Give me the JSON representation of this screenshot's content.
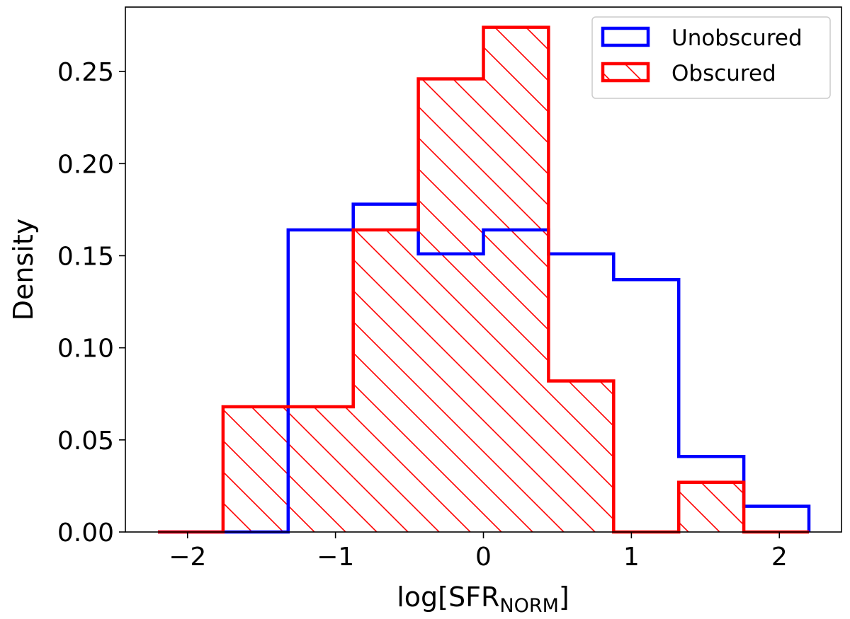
{
  "chart_data": {
    "type": "histogram",
    "title": "",
    "xlabel": {
      "main": "log[SFR",
      "sub": "NORM",
      "close": "]"
    },
    "ylabel": "Density",
    "xlim": [
      -2.42,
      2.42
    ],
    "ylim": [
      0,
      0.285
    ],
    "grid": false,
    "legend_placement": "top-right",
    "bin_edges": [
      -2.2,
      -1.76,
      -1.32,
      -0.88,
      -0.44,
      0.0,
      0.44,
      0.88,
      1.32,
      1.76,
      2.2
    ],
    "xticks": [
      -2,
      -1,
      0,
      1,
      2
    ],
    "xtick_labels": [
      "−2",
      "−1",
      "0",
      "1",
      "2"
    ],
    "yticks": [
      0.0,
      0.05,
      0.1,
      0.15,
      0.2,
      0.25
    ],
    "ytick_labels": [
      "0.00",
      "0.05",
      "0.10",
      "0.15",
      "0.20",
      "0.25"
    ],
    "series": [
      {
        "name": "Unobscured",
        "style": "step",
        "color": "#0000ff",
        "values": [
          0.0,
          0.0,
          0.164,
          0.178,
          0.151,
          0.164,
          0.151,
          0.137,
          0.041,
          0.014
        ]
      },
      {
        "name": "Obscured",
        "style": "step-hatched",
        "color": "#ff0000",
        "values": [
          0.0,
          0.068,
          0.068,
          0.164,
          0.246,
          0.274,
          0.082,
          0.0,
          0.027,
          0.0
        ]
      }
    ]
  }
}
